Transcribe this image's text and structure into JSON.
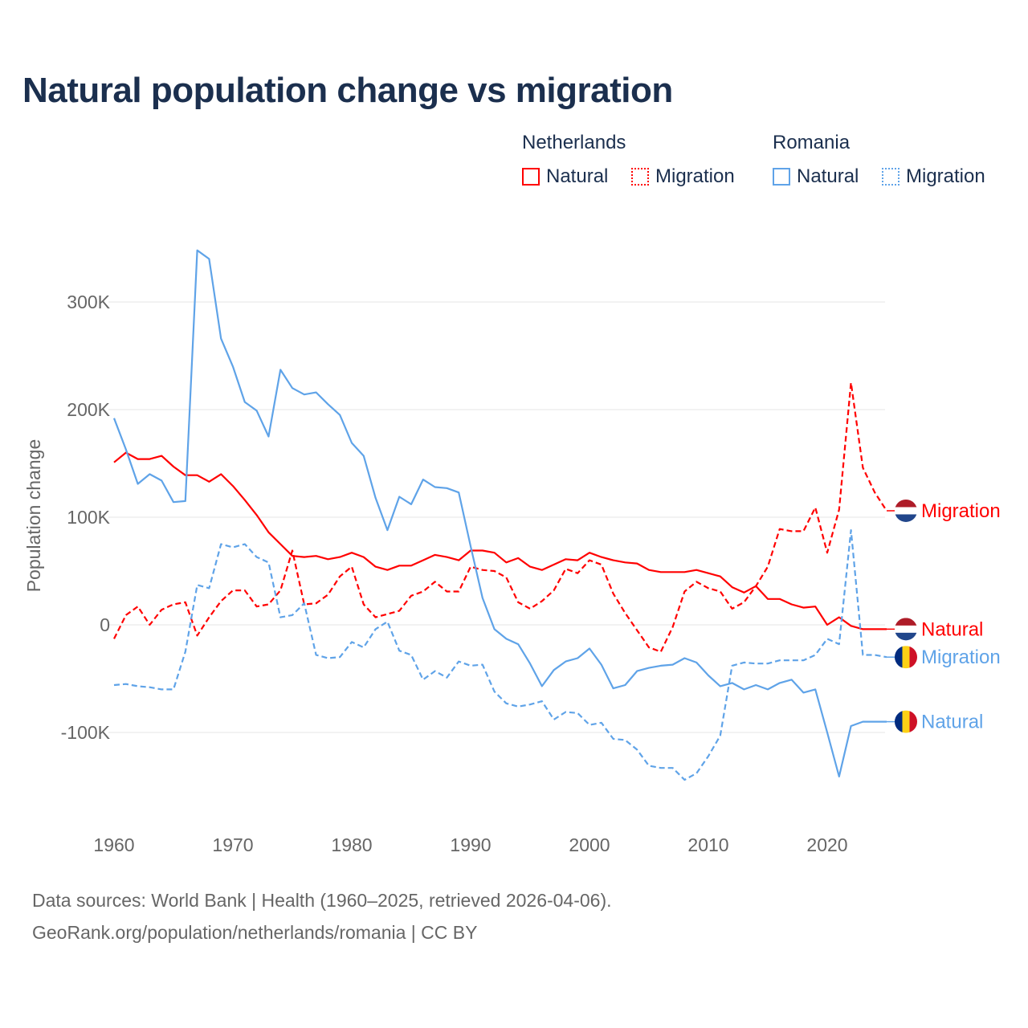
{
  "title": "Natural population change vs migration",
  "legend": {
    "groups": [
      {
        "name": "Netherlands",
        "items": [
          "Natural",
          "Migration"
        ]
      },
      {
        "name": "Romania",
        "items": [
          "Natural",
          "Migration"
        ]
      }
    ]
  },
  "source": {
    "line1": "Data sources: World Bank | Health (1960–2025, retrieved 2026-04-06).",
    "line2": "GeoRank.org/population/netherlands/romania | CC BY"
  },
  "colors": {
    "netherlands": "#ff0000",
    "romania": "#5fa3e8",
    "title": "#1b2f4e",
    "axis_text": "#666666",
    "grid": "#e6e6e6"
  },
  "chart_data": {
    "type": "line",
    "title": "Natural population change vs migration",
    "xlabel": "",
    "ylabel": "Population change",
    "xlim": [
      1960,
      2025
    ],
    "ylim": [
      -160,
      360
    ],
    "y_unit": "thousands",
    "grid": true,
    "x_ticks": [
      1960,
      1970,
      1980,
      1990,
      2000,
      2010,
      2020
    ],
    "x_tick_labels": [
      "1960",
      "1970",
      "1980",
      "1990",
      "2000",
      "2010",
      "2020"
    ],
    "y_ticks": [
      -100,
      0,
      100,
      200,
      300
    ],
    "y_tick_labels": [
      "-100K",
      "0",
      "100K",
      "200K",
      "300K"
    ],
    "legend_placement": "top-right",
    "x_start": 1960,
    "series": [
      {
        "name": "Netherlands Natural",
        "end_label": "Natural",
        "country": "netherlands",
        "style": "solid",
        "values": [
          151,
          160,
          154,
          154,
          157,
          147,
          139,
          139,
          133,
          140,
          129,
          116,
          102,
          86,
          75,
          64,
          63,
          64,
          61,
          63,
          67,
          63,
          54,
          51,
          55,
          55,
          60,
          65,
          63,
          60,
          69,
          69,
          67,
          58,
          62,
          54,
          51,
          56,
          61,
          60,
          67,
          63,
          60,
          58,
          57,
          51,
          49,
          49,
          49,
          51,
          48,
          45,
          35,
          30,
          36,
          24,
          24,
          19,
          16,
          17,
          0,
          7,
          -1,
          -4,
          -4,
          -4
        ]
      },
      {
        "name": "Netherlands Migration",
        "end_label": "Migration",
        "country": "netherlands",
        "style": "dashed",
        "values": [
          -13,
          9,
          17,
          0,
          14,
          19,
          21,
          -10,
          7,
          22,
          32,
          32,
          17,
          19,
          32,
          69,
          19,
          20,
          28,
          45,
          54,
          19,
          7,
          10,
          13,
          27,
          31,
          40,
          31,
          31,
          54,
          51,
          50,
          44,
          21,
          15,
          22,
          32,
          52,
          48,
          60,
          56,
          29,
          11,
          -5,
          -21,
          -25,
          -2,
          31,
          40,
          34,
          31,
          15,
          21,
          36,
          54,
          89,
          87,
          87,
          109,
          67,
          107,
          225,
          146,
          123,
          106
        ]
      },
      {
        "name": "Romania Natural",
        "end_label": "Natural",
        "country": "romania",
        "style": "solid",
        "values": [
          192,
          163,
          131,
          140,
          134,
          114,
          115,
          348,
          340,
          266,
          240,
          207,
          199,
          175,
          237,
          220,
          214,
          216,
          205,
          195,
          169,
          157,
          118,
          88,
          119,
          112,
          135,
          128,
          127,
          123,
          73,
          25,
          -4,
          -13,
          -18,
          -36,
          -57,
          -42,
          -34,
          -31,
          -22,
          -37,
          -59,
          -56,
          -43,
          -40,
          -38,
          -37,
          -31,
          -35,
          -47,
          -57,
          -54,
          -60,
          -56,
          -60,
          -54,
          -51,
          -63,
          -60,
          -100,
          -141,
          -94,
          -90,
          -90,
          -90
        ]
      },
      {
        "name": "Romania Migration",
        "end_label": "Migration",
        "country": "romania",
        "style": "dashed",
        "values": [
          -56,
          -55,
          -57,
          -58,
          -60,
          -60,
          -25,
          37,
          34,
          75,
          72,
          75,
          63,
          58,
          7,
          9,
          20,
          -28,
          -31,
          -30,
          -16,
          -21,
          -4,
          3,
          -24,
          -28,
          -51,
          -43,
          -49,
          -34,
          -38,
          -37,
          -62,
          -73,
          -76,
          -74,
          -71,
          -88,
          -81,
          -82,
          -93,
          -91,
          -106,
          -107,
          -116,
          -131,
          -133,
          -133,
          -144,
          -138,
          -122,
          -103,
          -38,
          -35,
          -36,
          -36,
          -33,
          -33,
          -33,
          -28,
          -13,
          -18,
          88,
          -28,
          -28,
          -30
        ]
      }
    ]
  }
}
